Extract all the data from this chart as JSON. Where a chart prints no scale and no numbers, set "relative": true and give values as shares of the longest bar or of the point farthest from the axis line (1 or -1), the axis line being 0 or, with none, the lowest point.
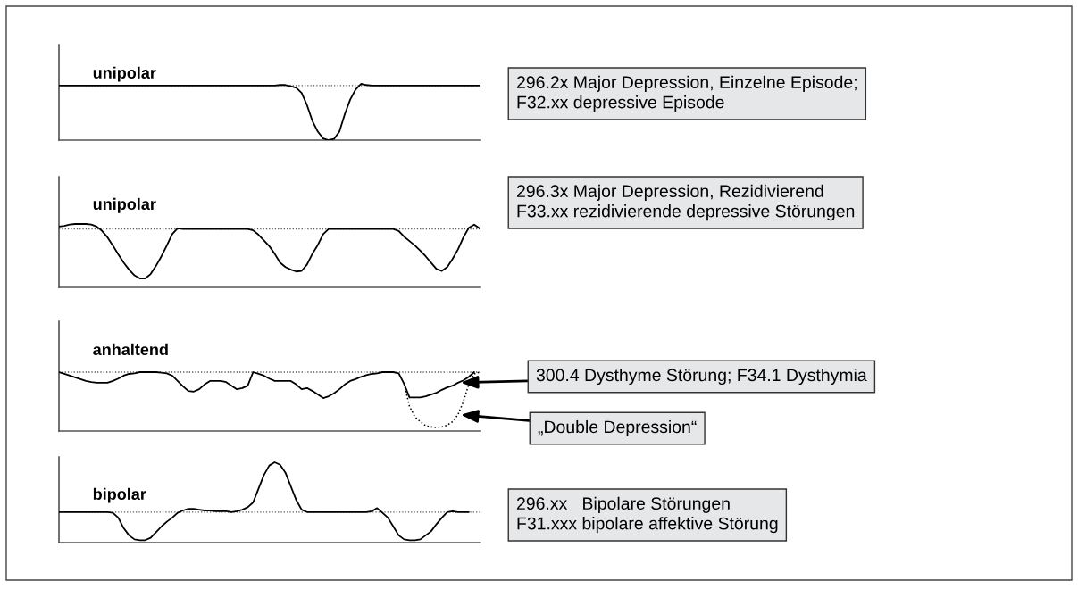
{
  "chart_data": [
    {
      "type": "line",
      "title": "unipolar",
      "relative": true,
      "categories": [
        null,
        null,
        null,
        null,
        null,
        null,
        null,
        null,
        null,
        null,
        null,
        null,
        null,
        null,
        null,
        null,
        null,
        null,
        null,
        null,
        null,
        null,
        null,
        null,
        null,
        null,
        null,
        null,
        null,
        null,
        null,
        null,
        null,
        null,
        null,
        null,
        null,
        null,
        null,
        null,
        null,
        null,
        null,
        null,
        null,
        null,
        null,
        null,
        null,
        null,
        null,
        null,
        null,
        null,
        null,
        null,
        null,
        null,
        null,
        null,
        null,
        null,
        null,
        null,
        null,
        null,
        null,
        null,
        null,
        null,
        null,
        null,
        null,
        null,
        null,
        null,
        null,
        null,
        null
      ],
      "series": [
        {
          "color": "#000000",
          "values": [
            0.97,
            0.97,
            0.97,
            0.97,
            0.97,
            0.97,
            0.97,
            0.97,
            0.97,
            0.97,
            0.97,
            0.97,
            0.97,
            0.97,
            0.97,
            0.97,
            0.97,
            0.97,
            0.97,
            0.97,
            0.97,
            0.97,
            0.97,
            0.97,
            0.97,
            0.97,
            0.97,
            0.97,
            0.97,
            0.97,
            0.97,
            0.97,
            0.97,
            0.97,
            0.97,
            0.97,
            0.97,
            0.97,
            0.97,
            0.97,
            0.97,
            0.98,
            0.98,
            0.96,
            0.93,
            0.84,
            0.62,
            0.34,
            0.15,
            0.03,
            0,
            0.02,
            0.15,
            0.46,
            0.72,
            0.9,
            1.0,
            0.98,
            0.97,
            0.97,
            0.97,
            0.97,
            0.97,
            0.97,
            0.97,
            0.97,
            0.97,
            0.97,
            0.97,
            0.97,
            0.97,
            0.97,
            0.97,
            0.97,
            0.97,
            0.97,
            0.97,
            0.97,
            0.97
          ]
        }
      ],
      "ref_lines": [
        {
          "axis": "y",
          "value": 0.97,
          "color": "#555555",
          "line_style": "dotted"
        }
      ],
      "annotations": [
        "296.2x Major Depression, Einzelne Episode;\nF32.xx depressive Episode"
      ]
    },
    {
      "type": "line",
      "title": "unipolar",
      "relative": true,
      "categories": [
        null,
        null,
        null,
        null,
        null,
        null,
        null,
        null,
        null,
        null,
        null,
        null,
        null,
        null,
        null,
        null,
        null,
        null,
        null,
        null,
        null,
        null,
        null,
        null,
        null,
        null,
        null,
        null,
        null,
        null,
        null,
        null,
        null,
        null,
        null,
        null,
        null,
        null,
        null,
        null,
        null,
        null,
        null,
        null,
        null,
        null,
        null,
        null,
        null,
        null,
        null,
        null,
        null,
        null,
        null,
        null,
        null,
        null,
        null,
        null,
        null,
        null,
        null,
        null,
        null,
        null,
        null,
        null,
        null,
        null,
        null,
        null,
        null,
        null,
        null,
        null,
        null,
        null,
        null
      ],
      "series": [
        {
          "color": "#000000",
          "values": [
            0.96,
            0.97,
            0.99,
            1.0,
            1.0,
            1.0,
            0.99,
            0.96,
            0.89,
            0.79,
            0.66,
            0.52,
            0.39,
            0.28,
            0.19,
            0.14,
            0.14,
            0.21,
            0.34,
            0.49,
            0.66,
            0.84,
            0.93,
            0.92,
            0.92,
            0.92,
            0.92,
            0.92,
            0.92,
            0.92,
            0.92,
            0.92,
            0.92,
            0.92,
            0.92,
            0.92,
            0.9,
            0.83,
            0.74,
            0.65,
            0.53,
            0.39,
            0.32,
            0.28,
            0.25,
            0.26,
            0.36,
            0.53,
            0.67,
            0.84,
            0.92,
            0.92,
            0.92,
            0.92,
            0.92,
            0.92,
            0.92,
            0.92,
            0.92,
            0.92,
            0.92,
            0.92,
            0.92,
            0.89,
            0.8,
            0.73,
            0.66,
            0.58,
            0.49,
            0.39,
            0.29,
            0.26,
            0.32,
            0.45,
            0.6,
            0.79,
            0.94,
            0.99,
            0.93
          ]
        }
      ],
      "ref_lines": [
        {
          "axis": "y",
          "value": 0.92,
          "color": "#555555",
          "line_style": "dotted"
        }
      ],
      "annotations": [
        "296.3x Major Depression, Rezidivierend\nF33.xx rezidivierende depressive Störungen"
      ]
    },
    {
      "type": "line",
      "title": "anhaltend",
      "relative": true,
      "categories": [
        null,
        null,
        null,
        null,
        null,
        null,
        null,
        null,
        null,
        null,
        null,
        null,
        null,
        null,
        null,
        null,
        null,
        null,
        null,
        null,
        null,
        null,
        null,
        null,
        null,
        null,
        null,
        null,
        null,
        null,
        null,
        null,
        null,
        null,
        null,
        null,
        null,
        null,
        null,
        null,
        null,
        null,
        null,
        null,
        null,
        null,
        null,
        null,
        null,
        null,
        null,
        null,
        null,
        null,
        null,
        null,
        null,
        null,
        null,
        null,
        null,
        null,
        null,
        null,
        null,
        null,
        null,
        null,
        null,
        null,
        null,
        null,
        null,
        null,
        null,
        null,
        null,
        null,
        null
      ],
      "series": [
        {
          "color": "#000000",
          "values": [
            1.0,
            0.97,
            0.94,
            0.91,
            0.88,
            0.85,
            0.83,
            0.82,
            0.82,
            0.82,
            0.85,
            0.89,
            0.94,
            0.97,
            0.98,
            1.0,
            1.0,
            1.0,
            1.0,
            0.99,
            0.98,
            0.94,
            0.85,
            0.76,
            0.68,
            0.67,
            0.71,
            0.79,
            0.85,
            0.85,
            0.85,
            0.83,
            0.77,
            0.71,
            0.73,
            0.77,
            1.0,
            0.97,
            0.94,
            0.89,
            0.85,
            0.85,
            0.85,
            0.85,
            0.79,
            0.71,
            0.73,
            0.68,
            0.62,
            0.56,
            0.59,
            0.64,
            0.71,
            0.79,
            0.85,
            0.88,
            0.92,
            0.95,
            0.97,
            0.98,
            1.0,
            1.0,
            1.0,
            0.98,
            0.8,
            0.57,
            0.57,
            0.57,
            0.59,
            0.62,
            0.65,
            0.7,
            0.74,
            0.77,
            0.82,
            0.86,
            0.92,
            1.0,
            null
          ]
        },
        {
          "color": "#000000",
          "line_style": "dotted",
          "values": [
            null,
            null,
            null,
            null,
            null,
            null,
            null,
            null,
            null,
            null,
            null,
            null,
            null,
            null,
            null,
            null,
            null,
            null,
            null,
            null,
            null,
            null,
            null,
            null,
            null,
            null,
            null,
            null,
            null,
            null,
            null,
            null,
            null,
            null,
            null,
            null,
            null,
            null,
            null,
            null,
            null,
            null,
            null,
            null,
            null,
            null,
            null,
            null,
            null,
            null,
            null,
            null,
            null,
            null,
            null,
            null,
            null,
            null,
            null,
            null,
            null,
            null,
            null,
            null,
            0.8,
            0.42,
            0.24,
            0.16,
            0.09,
            0.07,
            0.06,
            0.07,
            0.1,
            0.16,
            0.28,
            0.5,
            0.8,
            0.97,
            1.0
          ]
        }
      ],
      "ref_lines": [
        {
          "axis": "y",
          "value": 1.0,
          "color": "#555555",
          "line_style": "dotted"
        }
      ],
      "annotations": [
        "300.4 Dysthyme Störung; F34.1 Dysthymia",
        "„Double Depression“"
      ]
    },
    {
      "type": "line",
      "title": "bipolar",
      "relative": true,
      "categories": [
        null,
        null,
        null,
        null,
        null,
        null,
        null,
        null,
        null,
        null,
        null,
        null,
        null,
        null,
        null,
        null,
        null,
        null,
        null,
        null,
        null,
        null,
        null,
        null,
        null,
        null,
        null,
        null,
        null,
        null,
        null,
        null,
        null,
        null,
        null,
        null,
        null,
        null,
        null,
        null,
        null,
        null,
        null,
        null,
        null,
        null,
        null,
        null,
        null,
        null,
        null,
        null,
        null,
        null,
        null,
        null,
        null,
        null,
        null,
        null,
        null,
        null,
        null,
        null,
        null,
        null,
        null,
        null,
        null,
        null,
        null,
        null,
        null,
        null,
        null,
        null,
        null,
        null,
        null
      ],
      "series": [
        {
          "color": "#000000",
          "values": [
            0.38,
            0.38,
            0.38,
            0.38,
            0.38,
            0.38,
            0.38,
            0.38,
            0.38,
            0.38,
            0.37,
            0.31,
            0.18,
            0.09,
            0.04,
            0.03,
            0.03,
            0.06,
            0.13,
            0.2,
            0.26,
            0.31,
            0.37,
            0.4,
            0.42,
            0.42,
            0.41,
            0.4,
            0.4,
            0.39,
            0.39,
            0.39,
            0.38,
            0.39,
            0.41,
            0.44,
            0.5,
            0.67,
            0.84,
            0.96,
            1.0,
            0.97,
            0.87,
            0.7,
            0.53,
            0.41,
            0.38,
            0.38,
            0.38,
            0.38,
            0.38,
            0.38,
            0.38,
            0.38,
            0.38,
            0.38,
            0.38,
            0.38,
            0.39,
            0.43,
            0.37,
            0.31,
            0.2,
            0.09,
            0.04,
            0.03,
            0.03,
            0.04,
            0.09,
            0.14,
            0.23,
            0.31,
            0.38,
            0.39,
            0.38,
            0.38,
            0.38,
            null,
            null
          ]
        }
      ],
      "ref_lines": [
        {
          "axis": "y",
          "value": 0.38,
          "color": "#555555",
          "line_style": "dotted"
        }
      ],
      "annotations": [
        "296.xx   Bipolare Störungen\nF31.xxx bipolare affektive Störung"
      ]
    }
  ]
}
